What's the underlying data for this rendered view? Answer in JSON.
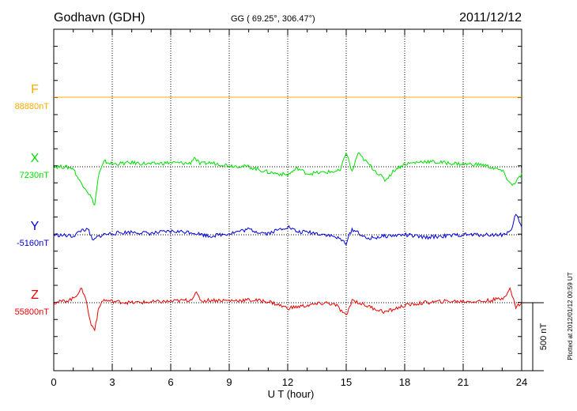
{
  "header": {
    "station": "Godhavn (GDH)",
    "coords": "GG ( 69.25°, 306.47°)",
    "date": "2011/12/12"
  },
  "plotted_note": "Plotted at 2012/01/12 00:59 UT",
  "scale_label": "500 nT",
  "chart_data": {
    "type": "line",
    "xlabel": "U T (hour)",
    "xlim": [
      0,
      24
    ],
    "xticks": [
      "0",
      "3",
      "6",
      "9",
      "12",
      "15",
      "18",
      "21",
      "24"
    ],
    "scale_bar_nT": 500,
    "grid": true,
    "series": [
      {
        "name": "F",
        "baseline_label": "88880nT",
        "color": "#ffaa00",
        "points": [
          [
            0,
            0
          ],
          [
            6,
            0
          ],
          [
            12,
            0
          ],
          [
            18,
            0
          ],
          [
            24,
            0
          ]
        ]
      },
      {
        "name": "X",
        "baseline_label": "7230nT",
        "color": "#00e000",
        "points": [
          [
            0,
            0
          ],
          [
            0.5,
            0
          ],
          [
            1,
            -10
          ],
          [
            1.3,
            -100
          ],
          [
            1.6,
            -150
          ],
          [
            1.9,
            -220
          ],
          [
            2.1,
            -280
          ],
          [
            2.3,
            -60
          ],
          [
            2.6,
            40
          ],
          [
            3,
            20
          ],
          [
            4,
            30
          ],
          [
            5,
            20
          ],
          [
            6,
            30
          ],
          [
            7,
            25
          ],
          [
            7.2,
            70
          ],
          [
            7.5,
            20
          ],
          [
            8,
            30
          ],
          [
            9,
            10
          ],
          [
            10,
            0
          ],
          [
            11,
            -40
          ],
          [
            12,
            -60
          ],
          [
            12.5,
            -10
          ],
          [
            13,
            -50
          ],
          [
            14,
            -40
          ],
          [
            14.7,
            -30
          ],
          [
            15,
            110
          ],
          [
            15.3,
            -40
          ],
          [
            15.6,
            100
          ],
          [
            16,
            40
          ],
          [
            17,
            -100
          ],
          [
            17.5,
            -20
          ],
          [
            18,
            20
          ],
          [
            19,
            40
          ],
          [
            20,
            30
          ],
          [
            21,
            20
          ],
          [
            22,
            15
          ],
          [
            23,
            -30
          ],
          [
            23.5,
            -140
          ],
          [
            24,
            -60
          ]
        ]
      },
      {
        "name": "Y",
        "baseline_label": "-5160nT",
        "color": "#0000dd",
        "points": [
          [
            0,
            0
          ],
          [
            1,
            -10
          ],
          [
            1.5,
            40
          ],
          [
            1.8,
            30
          ],
          [
            2,
            -50
          ],
          [
            2.2,
            -20
          ],
          [
            2.5,
            0
          ],
          [
            3,
            10
          ],
          [
            4,
            20
          ],
          [
            5,
            10
          ],
          [
            6,
            25
          ],
          [
            7,
            20
          ],
          [
            8,
            -10
          ],
          [
            9,
            10
          ],
          [
            10,
            40
          ],
          [
            10.5,
            20
          ],
          [
            11,
            10
          ],
          [
            12,
            60
          ],
          [
            12.5,
            20
          ],
          [
            13,
            20
          ],
          [
            14,
            0
          ],
          [
            14.5,
            -20
          ],
          [
            15,
            -60
          ],
          [
            15.3,
            40
          ],
          [
            15.6,
            20
          ],
          [
            16,
            -30
          ],
          [
            17,
            -10
          ],
          [
            18,
            0
          ],
          [
            19,
            -20
          ],
          [
            20,
            -10
          ],
          [
            21,
            0
          ],
          [
            22,
            0
          ],
          [
            23,
            0
          ],
          [
            23.5,
            30
          ],
          [
            23.7,
            160
          ],
          [
            24,
            50
          ]
        ]
      },
      {
        "name": "Z",
        "baseline_label": "55800nT",
        "color": "#ee0000",
        "points": [
          [
            0,
            0
          ],
          [
            0.5,
            10
          ],
          [
            1,
            30
          ],
          [
            1.4,
            100
          ],
          [
            1.6,
            60
          ],
          [
            1.9,
            -160
          ],
          [
            2.1,
            -190
          ],
          [
            2.3,
            -50
          ],
          [
            2.5,
            20
          ],
          [
            3,
            10
          ],
          [
            4,
            0
          ],
          [
            5,
            5
          ],
          [
            6,
            10
          ],
          [
            7,
            20
          ],
          [
            7.3,
            70
          ],
          [
            7.6,
            10
          ],
          [
            8,
            20
          ],
          [
            9,
            15
          ],
          [
            10,
            20
          ],
          [
            11,
            10
          ],
          [
            12,
            -40
          ],
          [
            13,
            -20
          ],
          [
            14,
            0
          ],
          [
            14.5,
            -20
          ],
          [
            15,
            -100
          ],
          [
            15.3,
            20
          ],
          [
            16,
            -20
          ],
          [
            17,
            -70
          ],
          [
            18,
            -20
          ],
          [
            19,
            0
          ],
          [
            20,
            10
          ],
          [
            21,
            10
          ],
          [
            22,
            10
          ],
          [
            23,
            30
          ],
          [
            23.4,
            100
          ],
          [
            23.7,
            -30
          ],
          [
            24,
            0
          ]
        ]
      }
    ]
  }
}
